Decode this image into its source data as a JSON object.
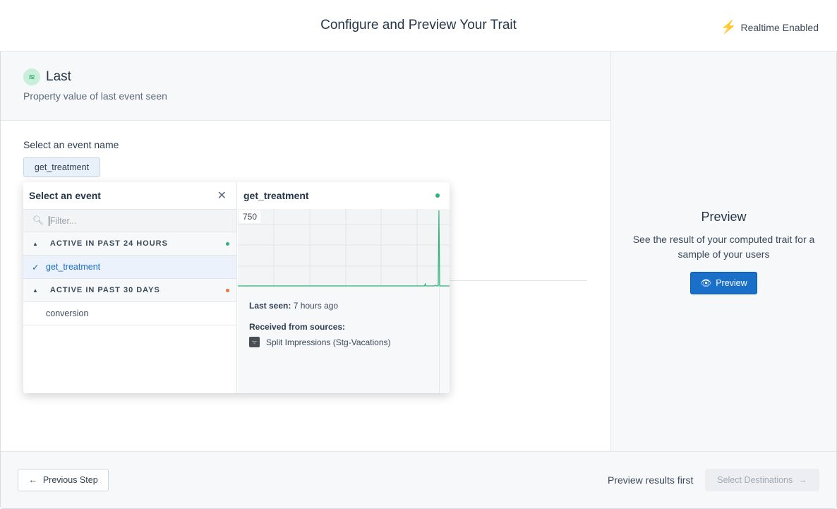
{
  "header": {
    "title": "Configure and Preview Your Trait",
    "realtime_label": "Realtime Enabled",
    "realtime_icon": "lightning-icon"
  },
  "trait": {
    "icon": "layers-icon",
    "title": "Last",
    "description": "Property value of last event seen"
  },
  "event_select": {
    "label": "Select an event name",
    "value": "get_treatment"
  },
  "popover": {
    "title": "Select an event",
    "filter_placeholder": "Filter...",
    "groups": [
      {
        "label": "ACTIVE IN PAST 24 HOURS",
        "dot_color": "#2fb37a",
        "items": [
          {
            "label": "get_treatment",
            "selected": true
          }
        ]
      },
      {
        "label": "ACTIVE IN PAST 30 DAYS",
        "dot_color": "#e8793a",
        "items": [
          {
            "label": "conversion",
            "selected": false
          }
        ]
      }
    ],
    "detail": {
      "title": "get_treatment",
      "status_color": "#2fb37a",
      "chart_max_label": "750",
      "chart_values": [
        0,
        0,
        0,
        0,
        0,
        0,
        0,
        0,
        0,
        0,
        0,
        0,
        0,
        0,
        0,
        0,
        0,
        0,
        0,
        0,
        0,
        0,
        0,
        0,
        0,
        0,
        0,
        0,
        0,
        0,
        0,
        0,
        0,
        0,
        0,
        0,
        0,
        0,
        0,
        0,
        0,
        0,
        0,
        0,
        0,
        0,
        0,
        0,
        0,
        0,
        0,
        0,
        0,
        0,
        0,
        0,
        0,
        0,
        0,
        0,
        0,
        0,
        0,
        0,
        0,
        0,
        0,
        0,
        0,
        0,
        0,
        0,
        0,
        0,
        0,
        0,
        0,
        0,
        0,
        0,
        0,
        0,
        0,
        0,
        0,
        0,
        0,
        0,
        0,
        0,
        0,
        0,
        0,
        0,
        0,
        0,
        0,
        0,
        0,
        0,
        0,
        0,
        0,
        0,
        0,
        0,
        0,
        0,
        0,
        0,
        0,
        0,
        0,
        0,
        0,
        0,
        0,
        0,
        0,
        0,
        0,
        0,
        0,
        0,
        0,
        0,
        0,
        0,
        0,
        0,
        0,
        0,
        0,
        0,
        0,
        0,
        0,
        0,
        0,
        0,
        0,
        0,
        0,
        0,
        0,
        0,
        0,
        0,
        0,
        0,
        0,
        0,
        0,
        0,
        0,
        0,
        0,
        0,
        0,
        0,
        0,
        0,
        0,
        0,
        0,
        0,
        0,
        0,
        0,
        0,
        0,
        0,
        0,
        0,
        0,
        0,
        0,
        0,
        0,
        0,
        0,
        0,
        0,
        0,
        0,
        0,
        0,
        0,
        0,
        0,
        0,
        0,
        0,
        0,
        0,
        0,
        0,
        0,
        0,
        0,
        0,
        0,
        0,
        0,
        0,
        0,
        0,
        0,
        0,
        0,
        0,
        0,
        0,
        0,
        0,
        0,
        0,
        0,
        0,
        0,
        0,
        0,
        0,
        0,
        0,
        0,
        0,
        0,
        0,
        0,
        0,
        0,
        0,
        0,
        0,
        0,
        0,
        0,
        0,
        0,
        0,
        0,
        0,
        0,
        0,
        0,
        0,
        20,
        0,
        0,
        0,
        0,
        0,
        0,
        0,
        0,
        0,
        0,
        0,
        0,
        5,
        5,
        0,
        0,
        0,
        750,
        0,
        0,
        0,
        0,
        0,
        0,
        0,
        0,
        0,
        0,
        0,
        0,
        0,
        0
      ],
      "last_seen_label": "Last seen:",
      "last_seen_value": "7 hours ago",
      "sources_label": "Received from sources:",
      "sources": [
        "Split Impressions (Stg-Vacations)"
      ]
    }
  },
  "preview": {
    "title": "Preview",
    "description": "See the result of your computed trait for a sample of your users",
    "button": "Preview"
  },
  "footer": {
    "previous": "Previous Step",
    "hint": "Preview results first",
    "next": "Select Destinations"
  },
  "colors": {
    "accent": "#1a6fc8",
    "chart": "#2fb37a"
  }
}
